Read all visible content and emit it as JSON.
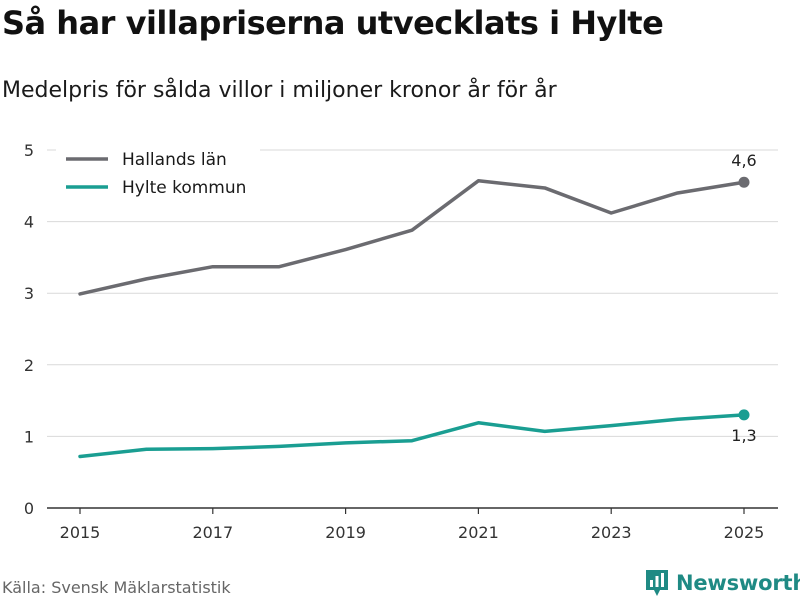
{
  "title": "Så har villapriserna utvecklats i Hylte",
  "subtitle": "Medelpris för sålda villor i miljoner kronor år för år",
  "source": "Källa: Svensk Mäklarstatistik",
  "brand": "Newsworthy",
  "colors": {
    "hallands": "#6b6b70",
    "hylte": "#1a9e92",
    "grid": "#d9d9d9",
    "axis": "#333333",
    "brand": "#1f8a84"
  },
  "chart_data": {
    "type": "line",
    "x": [
      2015,
      2016,
      2017,
      2018,
      2019,
      2020,
      2021,
      2022,
      2023,
      2024,
      2025
    ],
    "series": [
      {
        "name": "Hallands län",
        "key": "hallands",
        "values": [
          2.99,
          3.2,
          3.37,
          3.37,
          3.61,
          3.88,
          4.57,
          4.47,
          4.12,
          4.4,
          4.55
        ],
        "end_label": "4,6"
      },
      {
        "name": "Hylte kommun",
        "key": "hylte",
        "values": [
          0.72,
          0.82,
          0.83,
          0.86,
          0.91,
          0.94,
          1.19,
          1.07,
          1.15,
          1.24,
          1.3
        ],
        "end_label": "1,3"
      }
    ],
    "x_ticks": [
      2015,
      2017,
      2019,
      2021,
      2023,
      2025
    ],
    "y_ticks": [
      0,
      1,
      2,
      3,
      4,
      5
    ],
    "ylim": [
      0,
      5
    ],
    "xlim": [
      2015,
      2025
    ],
    "title": "Så har villapriserna utvecklats i Hylte",
    "xlabel": "",
    "ylabel": "",
    "legend": "top-left"
  }
}
